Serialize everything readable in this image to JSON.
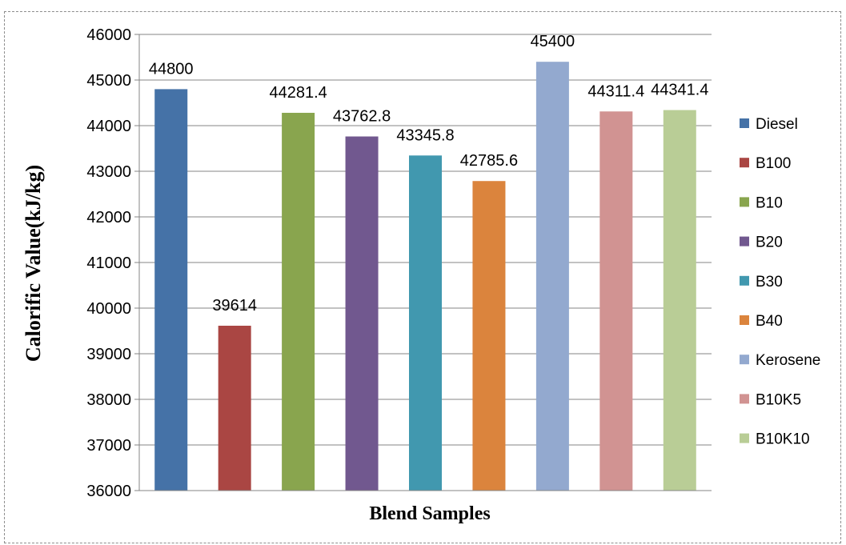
{
  "chart_data": {
    "type": "bar",
    "xlabel": "Blend Samples",
    "ylabel": "Calorific Value(kJ/kg)",
    "ylim": [
      36000,
      46000
    ],
    "ytick_step": 1000,
    "grid": true,
    "legend_position": "right",
    "categories": [
      "Diesel",
      "B100",
      "B10",
      "B20",
      "B30",
      "B40",
      "Kerosene",
      "B10K5",
      "B10K10"
    ],
    "values": [
      44800,
      39614,
      44281.4,
      43762.8,
      43345.8,
      42785.6,
      45400,
      44311.4,
      44341.4
    ],
    "data_labels": [
      "44800",
      "39614",
      "44281.4",
      "43762.8",
      "43345.8",
      "42785.6",
      "45400",
      "44311.4",
      "44341.4"
    ],
    "colors": [
      "#4572A7",
      "#AA4643",
      "#89A54E",
      "#71588F",
      "#4198AF",
      "#DB843D",
      "#93A9CF",
      "#D19392",
      "#B9CD96"
    ]
  }
}
